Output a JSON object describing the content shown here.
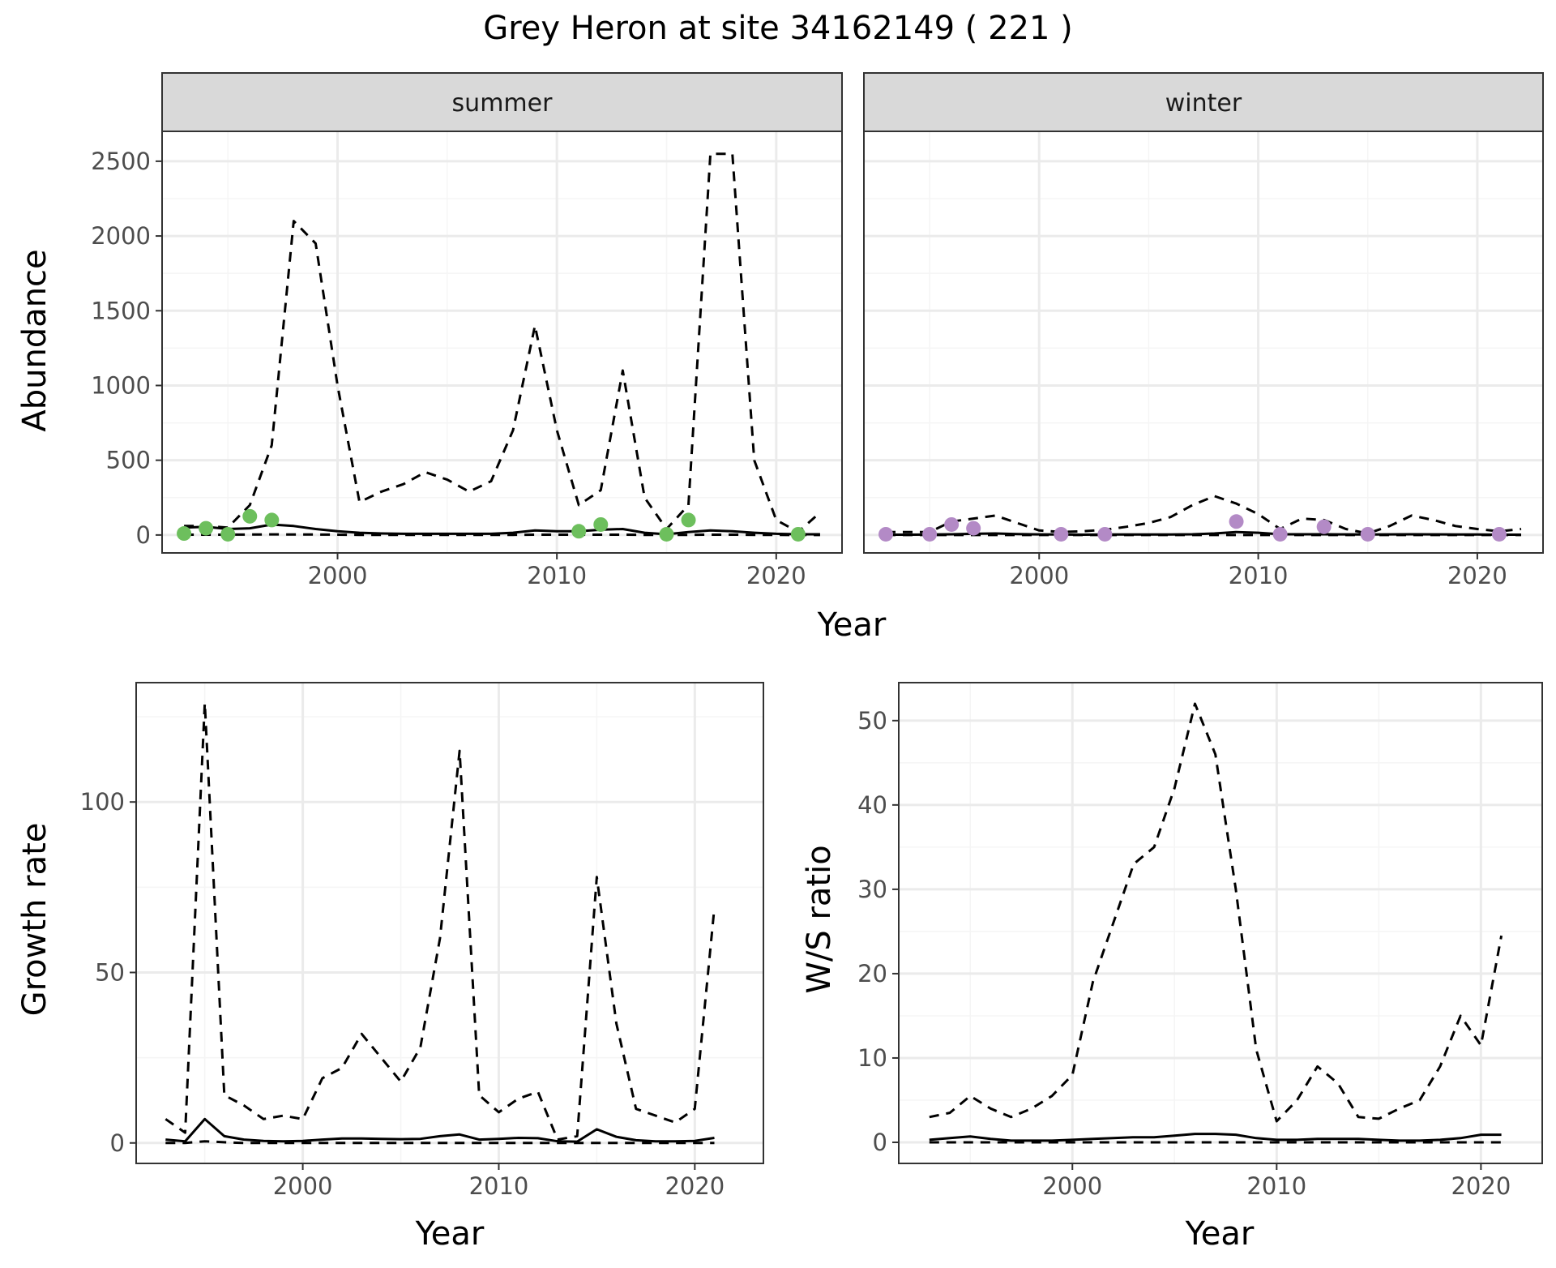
{
  "title": "Grey Heron at site 34162149 ( 221 )",
  "colors": {
    "summer_points": "#6dbf5d",
    "winter_points": "#b38ac6",
    "line": "#000000",
    "strip_bg": "#d9d9d9",
    "grid_major": "#ebebeb",
    "grid_minor": "#f5f5f5"
  },
  "chart_data": [
    {
      "id": "abundance",
      "type": "line",
      "facets": [
        "summer",
        "winter"
      ],
      "xlabel": "Year",
      "ylabel": "Abundance",
      "xlim": [
        1992,
        2023
      ],
      "ylim": [
        -120,
        2700
      ],
      "xticks": [
        2000,
        2010,
        2020
      ],
      "yticks": [
        0,
        500,
        1000,
        1500,
        2000,
        2500
      ],
      "x": [
        1993,
        1994,
        1995,
        1996,
        1997,
        1998,
        1999,
        2000,
        2001,
        2002,
        2003,
        2004,
        2005,
        2006,
        2007,
        2008,
        2009,
        2010,
        2011,
        2012,
        2013,
        2014,
        2015,
        2016,
        2017,
        2018,
        2019,
        2020,
        2021,
        2022
      ],
      "panels": [
        {
          "facet": "summer",
          "series": [
            {
              "role": "estimate",
              "style": "solid",
              "values": [
                50,
                55,
                40,
                45,
                70,
                60,
                40,
                25,
                15,
                10,
                8,
                8,
                8,
                8,
                8,
                15,
                30,
                25,
                25,
                35,
                40,
                15,
                5,
                20,
                30,
                25,
                15,
                8,
                5,
                5
              ]
            },
            {
              "role": "upper",
              "style": "dashed",
              "values": [
                60,
                60,
                50,
                200,
                600,
                2100,
                1950,
                1000,
                220,
                290,
                340,
                420,
                370,
                290,
                360,
                700,
                1400,
                700,
                200,
                300,
                1100,
                250,
                40,
                200,
                2550,
                2550,
                500,
                100,
                20,
                150
              ]
            },
            {
              "role": "lower",
              "style": "dashed",
              "values": [
                2,
                2,
                2,
                3,
                4,
                3,
                3,
                2,
                1,
                1,
                1,
                1,
                1,
                1,
                1,
                1,
                2,
                2,
                2,
                2,
                2,
                1,
                1,
                1,
                2,
                2,
                1,
                1,
                0,
                0
              ]
            }
          ],
          "points": {
            "x": [
              1993,
              1994,
              1995,
              1996,
              1997,
              2011,
              2012,
              2015,
              2016,
              2021
            ],
            "y": [
              10,
              45,
              5,
              125,
              100,
              25,
              70,
              5,
              100,
              5
            ]
          }
        },
        {
          "facet": "winter",
          "series": [
            {
              "role": "estimate",
              "style": "solid",
              "values": [
                2,
                2,
                3,
                5,
                8,
                10,
                6,
                4,
                3,
                2,
                3,
                3,
                3,
                3,
                5,
                10,
                20,
                15,
                5,
                5,
                5,
                4,
                3,
                4,
                5,
                4,
                3,
                3,
                2,
                2
              ]
            },
            {
              "role": "upper",
              "style": "dashed",
              "values": [
                20,
                20,
                20,
                90,
                110,
                130,
                80,
                30,
                20,
                25,
                35,
                55,
                80,
                120,
                200,
                260,
                210,
                140,
                40,
                110,
                100,
                40,
                10,
                60,
                130,
                100,
                60,
                40,
                25,
                40
              ]
            },
            {
              "role": "lower",
              "style": "dashed",
              "values": [
                0,
                0,
                0,
                0,
                0,
                0,
                0,
                0,
                0,
                0,
                0,
                0,
                0,
                0,
                0,
                0,
                0,
                0,
                0,
                0,
                0,
                0,
                0,
                0,
                0,
                0,
                0,
                0,
                0,
                0
              ]
            }
          ],
          "points": {
            "x": [
              1993,
              1995,
              1996,
              1997,
              2001,
              2003,
              2009,
              2011,
              2013,
              2015,
              2021
            ],
            "y": [
              5,
              5,
              70,
              45,
              5,
              5,
              90,
              5,
              55,
              5,
              5
            ]
          }
        }
      ]
    },
    {
      "id": "growth",
      "type": "line",
      "xlabel": "Year",
      "ylabel": "Growth rate",
      "xlim": [
        1991.5,
        2023.5
      ],
      "ylim": [
        -6,
        135
      ],
      "xticks": [
        2000,
        2010,
        2020
      ],
      "yticks": [
        0,
        50,
        100
      ],
      "x": [
        1993,
        1994,
        1995,
        1996,
        1997,
        1998,
        1999,
        2000,
        2001,
        2002,
        2003,
        2004,
        2005,
        2006,
        2007,
        2008,
        2009,
        2010,
        2011,
        2012,
        2013,
        2014,
        2015,
        2016,
        2017,
        2018,
        2019,
        2020,
        2021
      ],
      "series": [
        {
          "role": "estimate",
          "style": "solid",
          "values": [
            1,
            0.5,
            7,
            2,
            1,
            0.6,
            0.5,
            0.6,
            1,
            1.3,
            1.3,
            1.2,
            1.1,
            1.2,
            2,
            2.5,
            1,
            1.2,
            1.5,
            1.4,
            0.5,
            0.4,
            4,
            1.8,
            0.8,
            0.5,
            0.5,
            0.6,
            1.5
          ]
        },
        {
          "role": "upper",
          "style": "dashed",
          "values": [
            7,
            3,
            129,
            14,
            11,
            7,
            8,
            7,
            19,
            22,
            32,
            25,
            18,
            28,
            60,
            115,
            14,
            9,
            13,
            15,
            1,
            2,
            78,
            35,
            10,
            8,
            6,
            10,
            69
          ]
        },
        {
          "role": "lower",
          "style": "dashed",
          "values": [
            0,
            0,
            0.5,
            0.2,
            0,
            0,
            0,
            0,
            0,
            0,
            0,
            0,
            0,
            0,
            0,
            0,
            0,
            0,
            0,
            0,
            0,
            0,
            0,
            0,
            0,
            0,
            0,
            0,
            0
          ]
        }
      ]
    },
    {
      "id": "ws_ratio",
      "type": "line",
      "xlabel": "Year",
      "ylabel": "W/S ratio",
      "xlim": [
        1991.5,
        2023
      ],
      "ylim": [
        -2.5,
        54.5
      ],
      "xticks": [
        2000,
        2010,
        2020
      ],
      "yticks": [
        0,
        10,
        20,
        30,
        40,
        50
      ],
      "x": [
        1993,
        1994,
        1995,
        1996,
        1997,
        1998,
        1999,
        2000,
        2001,
        2002,
        2003,
        2004,
        2005,
        2006,
        2007,
        2008,
        2009,
        2010,
        2011,
        2012,
        2013,
        2014,
        2015,
        2016,
        2017,
        2018,
        2019,
        2020,
        2021
      ],
      "series": [
        {
          "role": "estimate",
          "style": "solid",
          "values": [
            0.3,
            0.5,
            0.7,
            0.4,
            0.2,
            0.2,
            0.2,
            0.3,
            0.4,
            0.5,
            0.6,
            0.6,
            0.8,
            1,
            1,
            0.9,
            0.5,
            0.3,
            0.3,
            0.4,
            0.4,
            0.4,
            0.3,
            0.2,
            0.2,
            0.3,
            0.5,
            0.9,
            0.9
          ]
        },
        {
          "role": "upper",
          "style": "dashed",
          "values": [
            3,
            3.5,
            5.5,
            4,
            3,
            4,
            5.5,
            8,
            19,
            26,
            33,
            35,
            42,
            52,
            46,
            30,
            11,
            2.5,
            5,
            9,
            7,
            3,
            2.8,
            4,
            5,
            9,
            15,
            11.5,
            24.5
          ]
        },
        {
          "role": "lower",
          "style": "dashed",
          "values": [
            0,
            0,
            0,
            0,
            0,
            0,
            0,
            0,
            0,
            0,
            0,
            0,
            0,
            0,
            0,
            0,
            0,
            0,
            0,
            0,
            0,
            0,
            0,
            0,
            0,
            0,
            0,
            0,
            0
          ]
        }
      ]
    }
  ]
}
